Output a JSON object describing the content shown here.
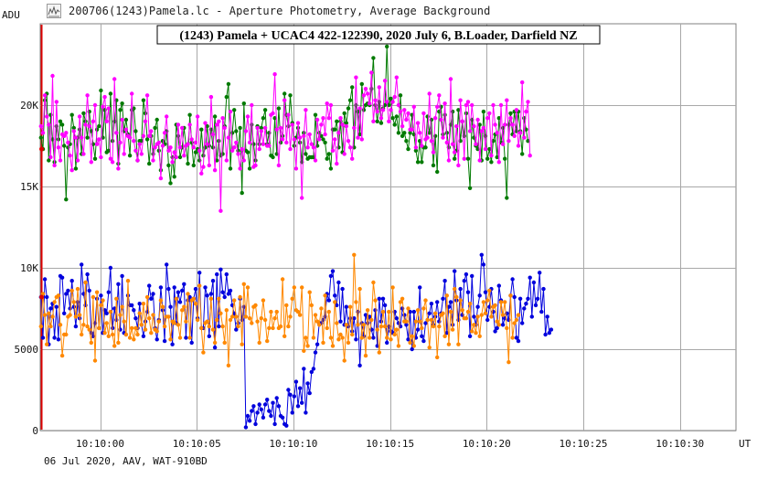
{
  "window": {
    "title": "200706(1243)Pamela.lc - Aperture Photometry, Average Background",
    "icon": "lightcurve-app-icon"
  },
  "footer": {
    "text": "06 Jul 2020, AAV, WAT-910BD"
  },
  "colors": {
    "green": "#007a00",
    "magenta": "#ff00ff",
    "blue": "#0000dd",
    "orange": "#ff8800",
    "marker": "#dd0000",
    "grid": "#a8a8a8"
  },
  "chart_data": {
    "type": "line",
    "title": "(1243) Pamela + UCAC4 422-122390, 2020 July 6,  B.Loader, Darfield NZ",
    "ylabel": "ADU",
    "xlabel": "UT",
    "ylim": [
      0,
      25000
    ],
    "xlim": [
      -3.1,
      32.9
    ],
    "x_ticks": [
      {
        "value": 0,
        "label": "10:10:00"
      },
      {
        "value": 5,
        "label": "10:10:05"
      },
      {
        "value": 10,
        "label": "10:10:10"
      },
      {
        "value": 15,
        "label": "10:10:15"
      },
      {
        "value": 20,
        "label": "10:10:20"
      },
      {
        "value": 25,
        "label": "10:10:25"
      },
      {
        "value": 30,
        "label": "10:10:30"
      }
    ],
    "y_ticks": [
      {
        "value": 0,
        "label": "0"
      },
      {
        "value": 5000,
        "label": "5000"
      },
      {
        "value": 10000,
        "label": "10K"
      },
      {
        "value": 15000,
        "label": "15K"
      },
      {
        "value": 20000,
        "label": "20K"
      }
    ],
    "grid": true,
    "x_start": -3.06,
    "x_step": 0.1,
    "series": [
      {
        "color_key": "green",
        "values": [
          18000,
          17300,
          20300,
          20700,
          16600,
          19400,
          17900,
          16500,
          18700,
          17900,
          19000,
          18800,
          17500,
          14200,
          17400,
          17600,
          19400,
          18600,
          16100,
          18000,
          18500,
          17000,
          19500,
          19000,
          18000,
          19600,
          18400,
          17600,
          16700,
          18500,
          18700,
          20900,
          18000,
          19700,
          17100,
          17200,
          20700,
          17800,
          19000,
          20300,
          16400,
          19700,
          20100,
          18400,
          19100,
          18200,
          16900,
          19700,
          19800,
          18400,
          16600,
          17800,
          17800,
          20300,
          19500,
          17900,
          16400,
          18100,
          17000,
          18600,
          19100,
          17200,
          16000,
          17800,
          17600,
          18400,
          16300,
          15200,
          16800,
          15600,
          18800,
          18100,
          16800,
          17400,
          18600,
          17500,
          16400,
          19400,
          17700,
          16300,
          17100,
          17300,
          16600,
          18500,
          16900,
          17400,
          18700,
          17500,
          18500,
          17400,
          19300,
          16600,
          17800,
          16900,
          17000,
          18700,
          20500,
          21300,
          16100,
          18300,
          19700,
          18400,
          17200,
          18600,
          14600,
          20100,
          17200,
          17100,
          16100,
          18800,
          17600,
          16600,
          18700,
          17600,
          18600,
          19200,
          19700,
          17600,
          18300,
          16900,
          16800,
          19200,
          17000,
          19800,
          17700,
          18100,
          20700,
          19400,
          18700,
          20600,
          18900,
          17500,
          18000,
          18600,
          17700,
          16500,
          18300,
          17000,
          16700,
          16800,
          16800,
          16800,
          19400,
          17500,
          18300,
          18100,
          17900,
          17700,
          16700,
          17000,
          16100,
          18500,
          18500,
          19000,
          17400,
          19000,
          17100,
          19500,
          18900,
          19800,
          20300,
          21100,
          17400,
          20000,
          19600,
          18200,
          21300,
          19700,
          20000,
          20100,
          20000,
          21000,
          22900,
          20000,
          19000,
          20200,
          18900,
          19800,
          20000,
          23600,
          20000,
          20400,
          19200,
          18800,
          19300,
          18300,
          20600,
          18100,
          18300,
          17800,
          17300,
          18300,
          19400,
          18200,
          17200,
          16500,
          17800,
          16500,
          17400,
          17400,
          19300,
          18300,
          19100,
          16300,
          18100,
          15900,
          19600,
          19900,
          18200,
          19400,
          18300,
          17400,
          18800,
          19600,
          16700,
          17200,
          19700,
          17800,
          19000,
          18100,
          19500,
          16700,
          14900,
          19100,
          18000,
          17500,
          17300,
          18800,
          16600,
          19600,
          18100,
          16700,
          17300,
          16500,
          17800,
          18200,
          16800,
          19200,
          17700,
          18600,
          16700,
          14300,
          18800,
          19500,
          18200,
          19600,
          18400,
          19600,
          18400,
          17000,
          19200,
          18500,
          17800
        ]
      },
      {
        "color_key": "magenta",
        "values": [
          18700,
          18300,
          20600,
          19300,
          18800,
          16800,
          21800,
          16300,
          20200,
          17400,
          16600,
          18200,
          18100,
          18300,
          17700,
          16900,
          16000,
          18400,
          18000,
          16600,
          19300,
          18000,
          17000,
          18800,
          20600,
          18700,
          16500,
          19000,
          20000,
          17600,
          17900,
          16800,
          19900,
          20500,
          19000,
          19800,
          16700,
          16500,
          21600,
          18300,
          16100,
          17700,
          19100,
          17000,
          18500,
          18100,
          18000,
          20700,
          17800,
          17200,
          16600,
          17600,
          17000,
          18100,
          19000,
          20600,
          18100,
          18400,
          16600,
          17400,
          17600,
          17700,
          15500,
          17500,
          18300,
          19300,
          17200,
          17400,
          16500,
          17100,
          16800,
          18800,
          17400,
          18600,
          16900,
          17500,
          17600,
          18800,
          17900,
          17400,
          17700,
          19300,
          17200,
          15800,
          16200,
          18900,
          17600,
          16300,
          20500,
          18200,
          16000,
          18800,
          19000,
          13500,
          19200,
          18600,
          16600,
          18000,
          19600,
          17200,
          17400,
          17700,
          17000,
          16100,
          17300,
          16600,
          18400,
          19300,
          17700,
          20000,
          16200,
          16300,
          18600,
          17300,
          18400,
          17600,
          18600,
          17500,
          17500,
          19400,
          19500,
          21900,
          18500,
          16300,
          18600,
          17900,
          20300,
          17700,
          19400,
          17300,
          18800,
          17900,
          16100,
          18900,
          18000,
          14300,
          18100,
          19700,
          17400,
          18200,
          17600,
          17400,
          16600,
          19100,
          17900,
          18800,
          19200,
          18200,
          20100,
          19200,
          20000,
          17200,
          17900,
          16400,
          18300,
          19200,
          18800,
          17000,
          18700,
          17800,
          17400,
          16700,
          18600,
          21700,
          18000,
          19800,
          17900,
          20600,
          21000,
          20700,
          20100,
          22000,
          19000,
          20300,
          19600,
          21100,
          19200,
          19700,
          21500,
          20200,
          19000,
          19700,
          20200,
          20500,
          21700,
          20000,
          19600,
          18700,
          19700,
          19100,
          19500,
          18500,
          18500,
          19900,
          17400,
          18900,
          18300,
          17500,
          19500,
          17900,
          18000,
          20700,
          17800,
          17100,
          19200,
          19900,
          20600,
          19100,
          18000,
          20100,
          17700,
          16600,
          21600,
          17600,
          17100,
          18700,
          16300,
          20300,
          19000,
          16700,
          20000,
          20200,
          18400,
          20000,
          18700,
          17600,
          19100,
          16600,
          18400,
          18600,
          17300,
          19200,
          19500,
          16900,
          20000,
          18800,
          18300,
          16500,
          20000,
          17600,
          18800,
          20300,
          17800,
          19200,
          18800,
          18100,
          19700,
          17500,
          18300,
          21400,
          18000,
          19600,
          20200,
          16900
        ]
      },
      {
        "color_key": "blue",
        "values": [
          8200,
          5700,
          9300,
          8200,
          5300,
          7500,
          7800,
          5700,
          7600,
          5600,
          9500,
          9400,
          7200,
          8400,
          8600,
          7500,
          9200,
          7600,
          6400,
          7900,
          6900,
          10200,
          8400,
          7700,
          9600,
          8600,
          6000,
          5800,
          6600,
          8100,
          6300,
          8300,
          6000,
          7400,
          7200,
          8500,
          10000,
          6300,
          7500,
          6800,
          9000,
          6200,
          9500,
          6000,
          5900,
          8300,
          7700,
          7700,
          7400,
          6900,
          6300,
          7800,
          6500,
          5800,
          6700,
          7300,
          8900,
          8100,
          8400,
          6300,
          5600,
          6800,
          8800,
          7400,
          5500,
          10200,
          8700,
          7600,
          5300,
          8800,
          6600,
          8500,
          7900,
          8600,
          9000,
          5700,
          8000,
          8200,
          5400,
          8100,
          8700,
          6900,
          9700,
          6300,
          6300,
          8800,
          8300,
          5800,
          8400,
          9200,
          5100,
          9600,
          6400,
          9900,
          8500,
          8200,
          9600,
          8400,
          8600,
          7700,
          7200,
          6200,
          6600,
          8100,
          6800,
          7600,
          200,
          900,
          600,
          1200,
          1500,
          400,
          1100,
          1600,
          1300,
          800,
          1600,
          1900,
          1200,
          900,
          1700,
          400,
          2000,
          1500,
          900,
          800,
          400,
          300,
          2500,
          2200,
          1100,
          2100,
          3000,
          1500,
          2600,
          1700,
          3800,
          1100,
          2900,
          2300,
          3600,
          3800,
          4800,
          5300,
          6600,
          6600,
          6800,
          7000,
          8400,
          8000,
          9500,
          9800,
          8300,
          7700,
          9100,
          6700,
          8700,
          6500,
          7600,
          6400,
          6900,
          6100,
          6900,
          5600,
          7300,
          4000,
          6600,
          5800,
          7100,
          6600,
          7000,
          6200,
          5700,
          7400,
          5200,
          8100,
          6700,
          8100,
          7700,
          5400,
          6400,
          6100,
          6000,
          7300,
          6900,
          6600,
          6400,
          7500,
          7100,
          6500,
          5600,
          7300,
          5000,
          7300,
          5700,
          6200,
          8800,
          5800,
          5500,
          6600,
          6800,
          7200,
          7800,
          6500,
          7000,
          7900,
          6700,
          7200,
          8100,
          9200,
          6000,
          7600,
          7900,
          6500,
          9800,
          8000,
          6800,
          8700,
          7100,
          9200,
          9600,
          8500,
          5800,
          9500,
          7000,
          6500,
          7600,
          8300,
          10800,
          10200,
          8500,
          6800,
          7600,
          8700,
          7300,
          6100,
          6300,
          8900,
          8000,
          6500,
          6900,
          7200,
          6800,
          8300,
          9300,
          8200,
          5700,
          5500,
          8100,
          6600,
          7500,
          7800,
          8100,
          9400,
          7000,
          9100,
          7700,
          8100,
          9700,
          7300,
          8700,
          5900,
          7000,
          6000,
          6200
        ]
      },
      {
        "color_key": "orange",
        "values": [
          6400,
          8400,
          7100,
          5300,
          7200,
          6400,
          7000,
          7900,
          8200,
          8300,
          6500,
          4600,
          5900,
          5900,
          7000,
          7100,
          8600,
          7900,
          7000,
          8700,
          7100,
          5900,
          6500,
          9100,
          6400,
          6200,
          5400,
          8200,
          4300,
          8500,
          6300,
          7700,
          8000,
          6000,
          6600,
          5800,
          7300,
          5900,
          5200,
          8100,
          5400,
          7100,
          7600,
          6700,
          5900,
          9200,
          5700,
          6300,
          5600,
          6300,
          5900,
          7200,
          6500,
          7800,
          6200,
          8200,
          6900,
          6000,
          7100,
          6200,
          6100,
          6700,
          8000,
          7600,
          6400,
          7000,
          7000,
          5600,
          6700,
          6600,
          8100,
          6500,
          5700,
          7400,
          7600,
          6700,
          8400,
          5700,
          8000,
          8100,
          7800,
          6800,
          8900,
          6300,
          4800,
          6600,
          6700,
          6400,
          8100,
          6200,
          5400,
          6800,
          8100,
          7200,
          6400,
          5400,
          7400,
          4000,
          6800,
          7000,
          8000,
          7000,
          6400,
          8200,
          5300,
          9000,
          7000,
          8800,
          6900,
          6600,
          7600,
          7700,
          6700,
          5400,
          6900,
          8000,
          6800,
          5500,
          6300,
          7300,
          6300,
          6900,
          7300,
          6300,
          6400,
          9300,
          5800,
          7700,
          6400,
          7000,
          8100,
          8800,
          7400,
          7300,
          7100,
          8800,
          4900,
          5700,
          5200,
          8500,
          7700,
          5700,
          7100,
          6700,
          6500,
          7500,
          5400,
          8300,
          6300,
          7300,
          5700,
          5200,
          7900,
          6600,
          5600,
          5900,
          5700,
          4300,
          6500,
          5400,
          7600,
          5900,
          10800,
          7900,
          6500,
          8700,
          5700,
          6500,
          4600,
          7400,
          5700,
          6800,
          9100,
          8000,
          6200,
          4800,
          6400,
          7300,
          6400,
          5700,
          7300,
          5600,
          8800,
          5900,
          6200,
          5200,
          7900,
          8100,
          6700,
          6700,
          7500,
          5400,
          5800,
          5200,
          6700,
          7400,
          6700,
          6300,
          7500,
          8000,
          6800,
          5100,
          6800,
          6400,
          7200,
          4500,
          6400,
          7100,
          7200,
          5800,
          8300,
          5300,
          7300,
          6200,
          8700,
          8200,
          5300,
          8000,
          7400,
          6900,
          6900,
          7300,
          7800,
          6100,
          6500,
          6000,
          7000,
          5800,
          7100,
          7900,
          7200,
          8000,
          8600,
          7000,
          7600,
          7700,
          6700,
          6500,
          7900,
          7100,
          7900,
          6300,
          4200,
          8300,
          5700,
          6600,
          6800,
          7100
        ]
      }
    ]
  }
}
